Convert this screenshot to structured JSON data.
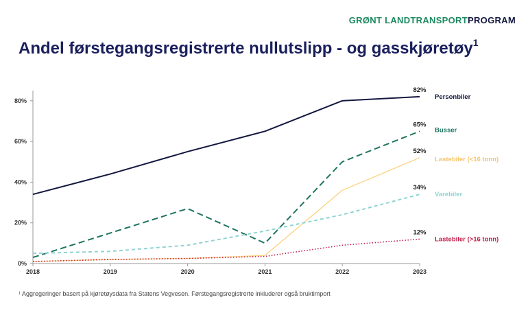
{
  "brand": {
    "part1": "GRØNT ",
    "part2": "LANDTRANSPORT",
    "part3": "PROGRAM"
  },
  "title": "Andel førstegangsregistrerte nullutslipp - og gasskjøretøy",
  "title_sup": "1",
  "footnote": "¹ Aggregeringer basert på kjøretøysdata fra Statens Vegvesen. Førstegangsregistrerte inkluderer også bruktimport",
  "chart_data": {
    "type": "line",
    "x": [
      2018,
      2019,
      2020,
      2021,
      2022,
      2023
    ],
    "x_tick_labels": [
      "2018",
      "2019",
      "2020",
      "2021",
      "2022",
      "2023"
    ],
    "ylim": [
      0,
      85
    ],
    "y_ticks": [
      0,
      20,
      40,
      60,
      80
    ],
    "y_tick_labels": [
      "0%",
      "20%",
      "40%",
      "60%",
      "80%"
    ],
    "grid": false,
    "legend_placement": "right (inline labels)",
    "series": [
      {
        "name": "Personbiler",
        "values": [
          34,
          44,
          55,
          65,
          80,
          82
        ],
        "end_label": "82%",
        "color": "#14183f",
        "dash": "solid",
        "width": 2
      },
      {
        "name": "Busser",
        "values": [
          3,
          15,
          27,
          10,
          50,
          65
        ],
        "end_label": "65%",
        "color": "#1e7460",
        "dash": "dashed",
        "width": 2
      },
      {
        "name": "Lastebiler (<16 tonn)",
        "values": [
          1,
          2,
          2.5,
          4,
          36,
          52
        ],
        "end_label": "52%",
        "color": "#fdd27e",
        "dash": "solid",
        "width": 1.3
      },
      {
        "name": "Varebiler",
        "values": [
          5,
          6,
          9,
          16,
          24,
          34
        ],
        "end_label": "34%",
        "color": "#8fd3d2",
        "dash": "dashed-short",
        "width": 2
      },
      {
        "name": "Lastebiler (>16 tonn)",
        "values": [
          1,
          2,
          2.5,
          3.5,
          9,
          12
        ],
        "end_label": "12%",
        "color": "#c21d4a",
        "dash": "dotted",
        "width": 1.6
      }
    ]
  }
}
